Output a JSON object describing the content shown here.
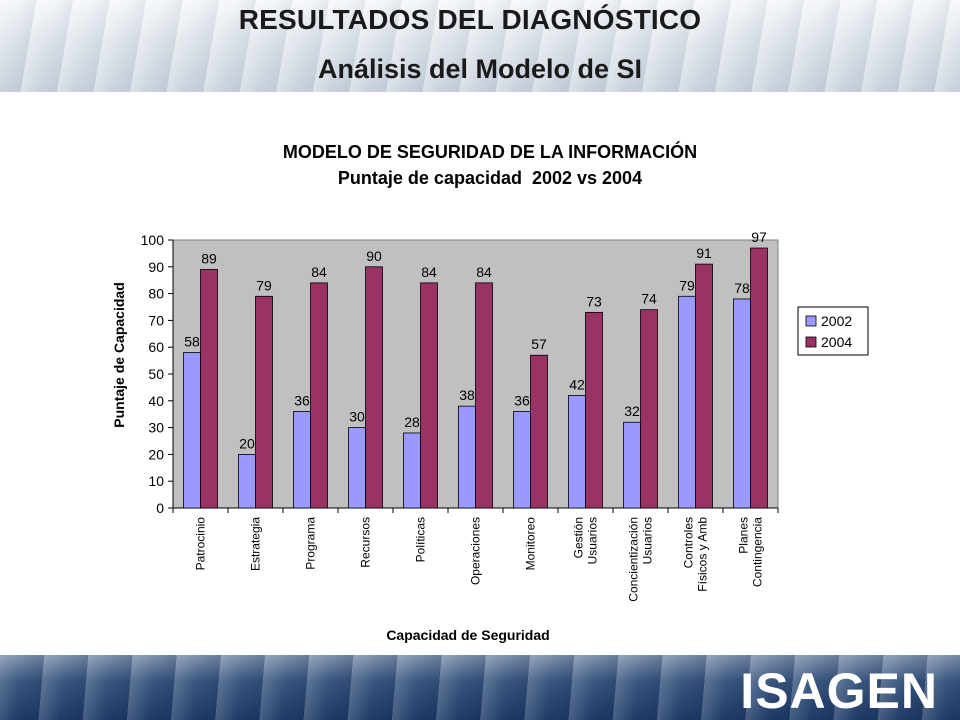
{
  "header": {
    "title": "RESULTADOS DEL DIAGNÓSTICO",
    "subtitle": "Análisis del Modelo de SI"
  },
  "footer": {
    "logo_text": "ISAGEN"
  },
  "chart_data": {
    "type": "bar",
    "title": "MODELO DE SEGURIDAD DE LA INFORMACIÓN",
    "subtitle": "Puntaje de capacidad  2002 vs 2004",
    "xlabel": "Capacidad de Seguridad",
    "ylabel": "Puntaje de Capacidad",
    "ylim": [
      0,
      100
    ],
    "yticks": [
      0,
      10,
      20,
      30,
      40,
      50,
      60,
      70,
      80,
      90,
      100
    ],
    "grid": false,
    "legend_position": "right",
    "plot_background": "#c0c0c0",
    "categories": [
      [
        "Patrocinio"
      ],
      [
        "Estrategia"
      ],
      [
        "Programa"
      ],
      [
        "Recursos"
      ],
      [
        "Políticas"
      ],
      [
        "Operaciones"
      ],
      [
        "Monitoreo"
      ],
      [
        "Gestión",
        "Usuarios"
      ],
      [
        "Concientización",
        "Usuarios"
      ],
      [
        "Controles",
        "Físicos y Amb"
      ],
      [
        "Planes",
        "Contingencia"
      ]
    ],
    "series": [
      {
        "name": "2002",
        "color": "#9999ff",
        "values": [
          58,
          20,
          36,
          30,
          28,
          38,
          36,
          42,
          32,
          79,
          78
        ]
      },
      {
        "name": "2004",
        "color": "#993366",
        "values": [
          89,
          79,
          84,
          90,
          84,
          84,
          57,
          73,
          74,
          91,
          97
        ]
      }
    ]
  }
}
